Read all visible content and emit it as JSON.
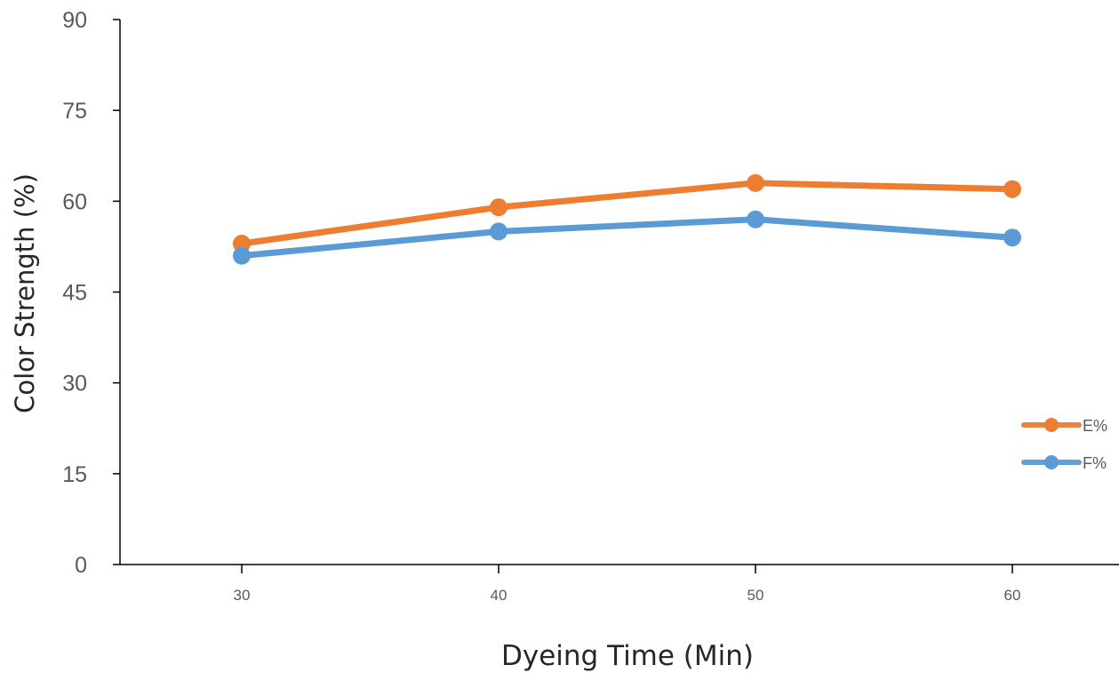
{
  "chart_data": {
    "type": "line",
    "title": "",
    "xlabel": "Dyeing Time (Min)",
    "ylabel": "Color Strength (%)",
    "x": [
      30,
      40,
      50,
      60
    ],
    "x_tick_labels": [
      "30",
      "40",
      "50",
      "60"
    ],
    "y_ticks": [
      0,
      15,
      30,
      45,
      60,
      75,
      90
    ],
    "y_tick_labels": [
      "0",
      "15",
      "30",
      "45",
      "60",
      "75",
      "90"
    ],
    "ylim": [
      0,
      90
    ],
    "grid": false,
    "legend_position": "right",
    "series": [
      {
        "name": "E%",
        "values": [
          53,
          59,
          63,
          62
        ],
        "color": "#ED7D31"
      },
      {
        "name": "F%",
        "values": [
          51,
          55,
          57,
          54
        ],
        "color": "#5B9BD5"
      }
    ]
  }
}
